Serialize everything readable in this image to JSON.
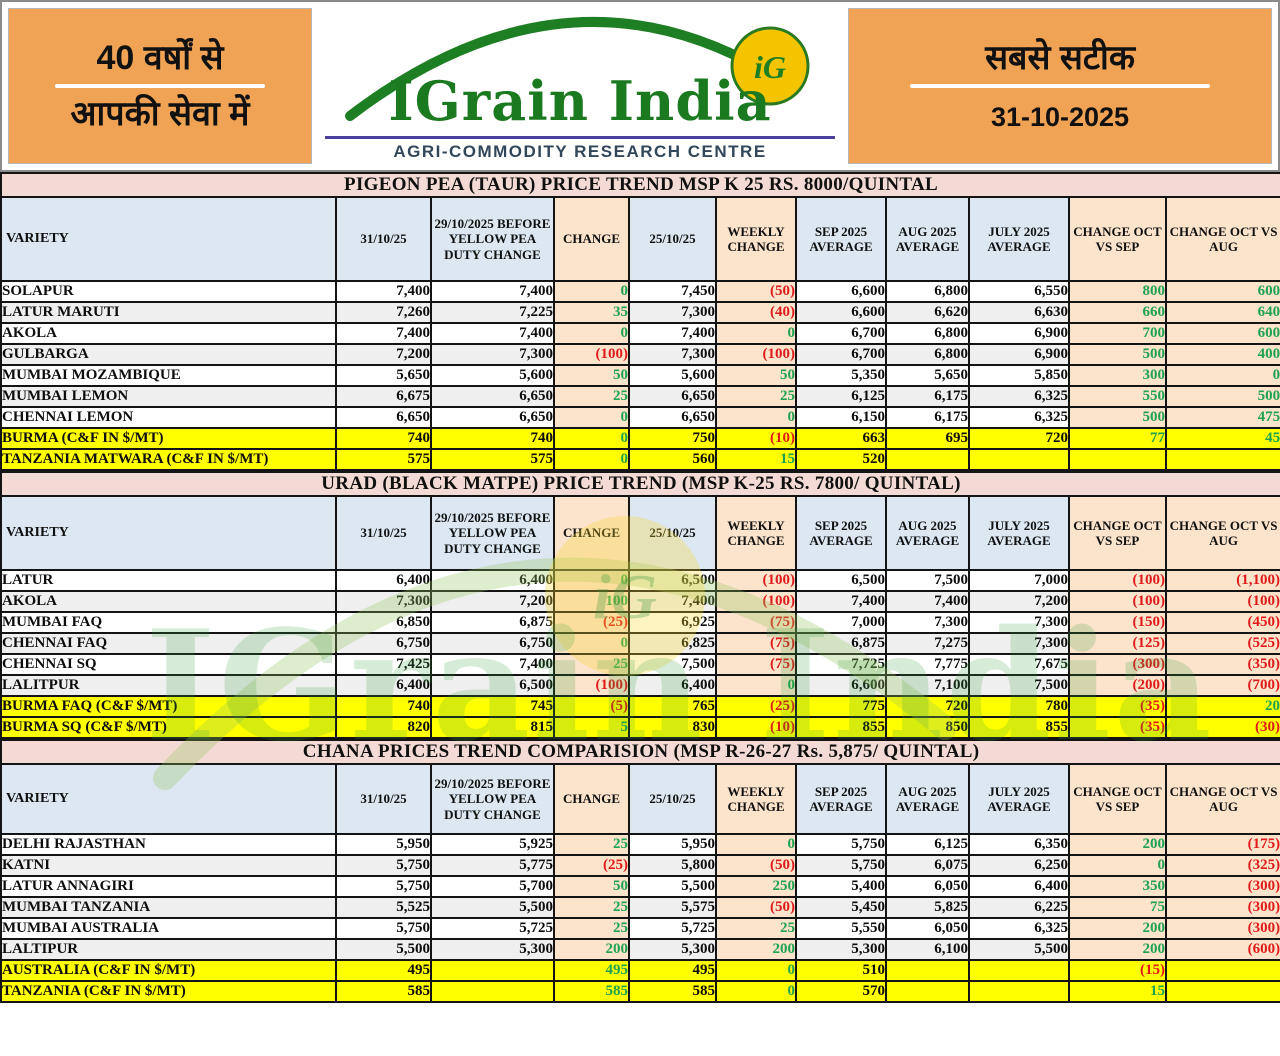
{
  "header": {
    "left_box": {
      "line1": "40 वर्षों से",
      "line2": "आपकी सेवा में"
    },
    "logo": {
      "brand": "IGrain India",
      "subtitle": "AGRI-COMMODITY RESEARCH CENTRE",
      "monogram": "iG"
    },
    "right_box": {
      "tagline": "सबसे सटीक",
      "date": "31-10-2025"
    }
  },
  "columns": [
    "VARIETY",
    "31/10/25",
    "29/10/2025 BEFORE YELLOW PEA DUTY CHANGE",
    "CHANGE",
    "25/10/25",
    "WEEKLY CHANGE",
    "SEP 2025 AVERAGE",
    "AUG 2025 AVERAGE",
    "JULY 2025 AVERAGE",
    "CHANGE OCT VS SEP",
    "CHANGE OCT VS AUG"
  ],
  "change_columns": [
    3,
    5,
    9,
    10
  ],
  "colors": {
    "positive": "#1FA24F",
    "negative": "#E01B1B",
    "highlight_row": "#FFFF00",
    "header_fill": "#DCE7F1",
    "change_fill": "#FBE3CC",
    "title_fill": "#F4DAD5",
    "accent_orange": "#F0A355",
    "brand_green": "#1B7A20"
  },
  "tables": [
    {
      "title": "PIGEON PEA (TAUR) PRICE TREND MSP K 25 RS. 8000/QUINTAL",
      "rows": [
        {
          "variety": "SOLAPUR",
          "highlight": false,
          "values": [
            "7,400",
            "7,400",
            "0",
            "7,450",
            "(50)",
            "6,600",
            "6,800",
            "6,550",
            "800",
            "600"
          ]
        },
        {
          "variety": "LATUR MARUTI",
          "highlight": false,
          "values": [
            "7,260",
            "7,225",
            "35",
            "7,300",
            "(40)",
            "6,600",
            "6,620",
            "6,630",
            "660",
            "640"
          ]
        },
        {
          "variety": "AKOLA",
          "highlight": false,
          "values": [
            "7,400",
            "7,400",
            "0",
            "7,400",
            "0",
            "6,700",
            "6,800",
            "6,900",
            "700",
            "600"
          ]
        },
        {
          "variety": "GULBARGA",
          "highlight": false,
          "values": [
            "7,200",
            "7,300",
            "(100)",
            "7,300",
            "(100)",
            "6,700",
            "6,800",
            "6,900",
            "500",
            "400"
          ]
        },
        {
          "variety": "MUMBAI MOZAMBIQUE",
          "highlight": false,
          "values": [
            "5,650",
            "5,600",
            "50",
            "5,600",
            "50",
            "5,350",
            "5,650",
            "5,850",
            "300",
            "0"
          ]
        },
        {
          "variety": "MUMBAI LEMON",
          "highlight": false,
          "values": [
            "6,675",
            "6,650",
            "25",
            "6,650",
            "25",
            "6,125",
            "6,175",
            "6,325",
            "550",
            "500"
          ]
        },
        {
          "variety": "CHENNAI LEMON",
          "highlight": false,
          "values": [
            "6,650",
            "6,650",
            "0",
            "6,650",
            "0",
            "6,150",
            "6,175",
            "6,325",
            "500",
            "475"
          ]
        },
        {
          "variety": "BURMA (C&F IN $/MT)",
          "highlight": true,
          "values": [
            "740",
            "740",
            "0",
            "750",
            "(10)",
            "663",
            "695",
            "720",
            "77",
            "45"
          ]
        },
        {
          "variety": "TANZANIA MATWARA (C&F IN $/MT)",
          "highlight": true,
          "values": [
            "575",
            "575",
            "0",
            "560",
            "15",
            "520",
            "",
            "",
            "",
            ""
          ]
        }
      ]
    },
    {
      "title": "URAD (BLACK MATPE) PRICE TREND (MSP K-25 RS. 7800/ QUINTAL)",
      "rows": [
        {
          "variety": "LATUR",
          "highlight": false,
          "values": [
            "6,400",
            "6,400",
            "0",
            "6,500",
            "(100)",
            "6,500",
            "7,500",
            "7,000",
            "(100)",
            "(1,100)"
          ]
        },
        {
          "variety": "AKOLA",
          "highlight": false,
          "values": [
            "7,300",
            "7,200",
            "100",
            "7,400",
            "(100)",
            "7,400",
            "7,400",
            "7,200",
            "(100)",
            "(100)"
          ]
        },
        {
          "variety": "MUMBAI FAQ",
          "highlight": false,
          "values": [
            "6,850",
            "6,875",
            "(25)",
            "6,925",
            "(75)",
            "7,000",
            "7,300",
            "7,300",
            "(150)",
            "(450)"
          ]
        },
        {
          "variety": "CHENNAI FAQ",
          "highlight": false,
          "values": [
            "6,750",
            "6,750",
            "0",
            "6,825",
            "(75)",
            "6,875",
            "7,275",
            "7,300",
            "(125)",
            "(525)"
          ]
        },
        {
          "variety": "CHENNAI SQ",
          "highlight": false,
          "values": [
            "7,425",
            "7,400",
            "25",
            "7,500",
            "(75)",
            "7,725",
            "7,775",
            "7,675",
            "(300)",
            "(350)"
          ]
        },
        {
          "variety": "LALITPUR",
          "highlight": false,
          "values": [
            "6,400",
            "6,500",
            "(100)",
            "6,400",
            "0",
            "6,600",
            "7,100",
            "7,500",
            "(200)",
            "(700)"
          ]
        },
        {
          "variety": "BURMA FAQ (C&F $/MT)",
          "highlight": true,
          "values": [
            "740",
            "745",
            "(5)",
            "765",
            "(25)",
            "775",
            "720",
            "780",
            "(35)",
            "20"
          ]
        },
        {
          "variety": "BURMA SQ (C&F $/MT)",
          "highlight": true,
          "values": [
            "820",
            "815",
            "5",
            "830",
            "(10)",
            "855",
            "850",
            "855",
            "(35)",
            "(30)"
          ]
        }
      ]
    },
    {
      "title": "CHANA PRICES TREND COMPARISION (MSP R-26-27 Rs. 5,875/ QUINTAL)",
      "rows": [
        {
          "variety": "DELHI RAJASTHAN",
          "highlight": false,
          "values": [
            "5,950",
            "5,925",
            "25",
            "5,950",
            "0",
            "5,750",
            "6,125",
            "6,350",
            "200",
            "(175)"
          ]
        },
        {
          "variety": "KATNI",
          "highlight": false,
          "values": [
            "5,750",
            "5,775",
            "(25)",
            "5,800",
            "(50)",
            "5,750",
            "6,075",
            "6,250",
            "0",
            "(325)"
          ]
        },
        {
          "variety": "LATUR ANNAGIRI",
          "highlight": false,
          "values": [
            "5,750",
            "5,700",
            "50",
            "5,500",
            "250",
            "5,400",
            "6,050",
            "6,400",
            "350",
            "(300)"
          ]
        },
        {
          "variety": "MUMBAI TANZANIA",
          "highlight": false,
          "values": [
            "5,525",
            "5,500",
            "25",
            "5,575",
            "(50)",
            "5,450",
            "5,825",
            "6,225",
            "75",
            "(300)"
          ]
        },
        {
          "variety": "MUMBAI AUSTRALIA",
          "highlight": false,
          "values": [
            "5,750",
            "5,725",
            "25",
            "5,725",
            "25",
            "5,550",
            "6,050",
            "6,325",
            "200",
            "(300)"
          ]
        },
        {
          "variety": "LALTIPUR",
          "highlight": false,
          "values": [
            "5,500",
            "5,300",
            "200",
            "5,300",
            "200",
            "5,300",
            "6,100",
            "5,500",
            "200",
            "(600)"
          ]
        },
        {
          "variety": "AUSTRALIA (C&F IN $/MT)",
          "highlight": true,
          "values": [
            "495",
            "",
            "495",
            "495",
            "0",
            "510",
            "",
            "",
            "(15)",
            ""
          ]
        },
        {
          "variety": "TANZANIA (C&F IN $/MT)",
          "highlight": true,
          "values": [
            "585",
            "",
            "585",
            "585",
            "0",
            "570",
            "",
            "",
            "15",
            ""
          ]
        }
      ]
    }
  ]
}
